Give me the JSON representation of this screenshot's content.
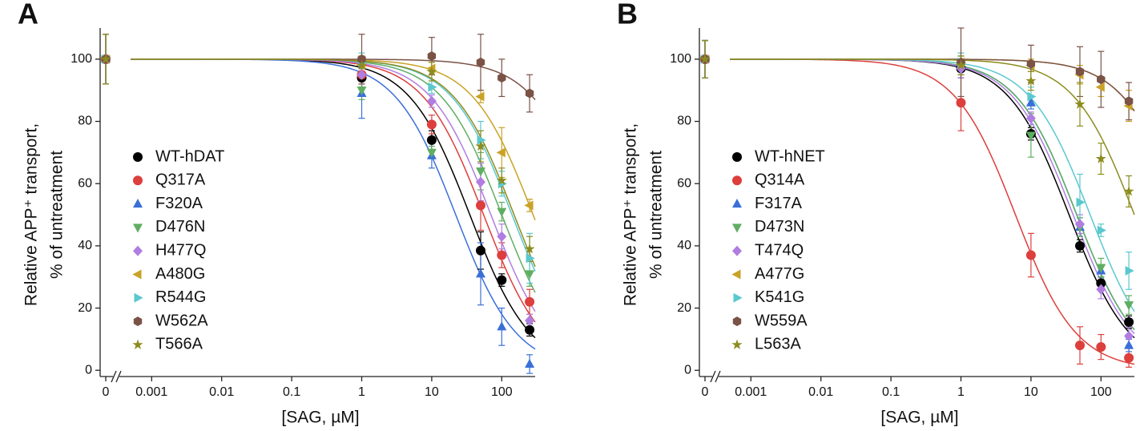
{
  "chart_data": [
    {
      "type": "scatter",
      "panel": "A",
      "xlabel": "[SAG, µM]",
      "ylabel": [
        "Relative APP⁺ transport,",
        "% of untreatment"
      ],
      "xscale": "log",
      "x_break": true,
      "xlim": [
        0.0005,
        300
      ],
      "ylim": [
        -2,
        110
      ],
      "xticks": [
        0,
        0.001,
        0.01,
        0.1,
        1,
        10,
        100
      ],
      "yticks": [
        0,
        20,
        40,
        60,
        80,
        100
      ],
      "x": [
        0,
        1,
        10,
        50,
        100,
        250
      ],
      "series": [
        {
          "name": "WT-hDAT",
          "color": "#000000",
          "marker": "circle",
          "values": [
            100,
            94,
            74,
            38.5,
            29,
            13
          ],
          "errors": [
            8,
            3,
            3,
            6,
            2,
            2
          ],
          "fit": {
            "ic50": 35,
            "hill": 1
          }
        },
        {
          "name": "Q317A",
          "color": "#dc3f3c",
          "marker": "circle",
          "values": [
            100,
            95,
            79,
            53,
            37,
            22
          ],
          "errors": [
            8,
            3,
            3,
            8,
            4,
            4
          ],
          "fit": {
            "ic50": 55,
            "hill": 1
          }
        },
        {
          "name": "F320A",
          "color": "#3a6fd8",
          "marker": "triangle-up",
          "values": [
            100,
            89,
            69,
            31,
            14,
            2
          ],
          "errors": [
            8,
            8,
            4,
            10,
            6,
            3
          ],
          "fit": {
            "ic50": 22,
            "hill": 1
          }
        },
        {
          "name": "D476N",
          "color": "#5fae62",
          "marker": "triangle-down",
          "values": [
            100,
            90,
            70,
            64,
            51,
            31
          ],
          "errors": [
            8,
            3,
            2,
            6,
            3,
            4
          ],
          "fit": {
            "ic50": 100,
            "hill": 1
          }
        },
        {
          "name": "H477Q",
          "color": "#b07ee0",
          "marker": "diamond",
          "values": [
            100,
            95,
            86.5,
            60.5,
            43,
            16
          ],
          "errors": [
            8,
            3,
            2,
            6,
            4,
            2
          ],
          "fit": {
            "ic50": 70,
            "hill": 1
          }
        },
        {
          "name": "A480G",
          "color": "#c9a227",
          "marker": "triangle-left",
          "values": [
            100,
            98,
            97,
            88,
            70,
            53
          ],
          "errors": [
            8,
            3,
            2,
            2,
            8,
            2
          ],
          "fit": {
            "ic50": 280,
            "hill": 1
          }
        },
        {
          "name": "R544G",
          "color": "#5bc8cf",
          "marker": "triangle-right",
          "values": [
            100,
            99,
            91,
            74,
            60,
            36
          ],
          "errors": [
            8,
            3,
            2,
            6,
            4,
            8
          ],
          "fit": {
            "ic50": 140,
            "hill": 1
          }
        },
        {
          "name": "W562A",
          "color": "#7a5246",
          "marker": "hexagon",
          "values": [
            100,
            100,
            101,
            99,
            94,
            89
          ],
          "errors": [
            8,
            8,
            6,
            9,
            6,
            6
          ],
          "fit": {
            "ic50": 2000,
            "hill": 1
          }
        },
        {
          "name": "T566A",
          "color": "#8c8c1f",
          "marker": "star",
          "values": [
            100,
            98,
            96,
            72,
            61,
            39
          ],
          "errors": [
            8,
            3,
            3,
            5,
            4,
            4
          ],
          "fit": {
            "ic50": 150,
            "hill": 1
          }
        }
      ]
    },
    {
      "type": "scatter",
      "panel": "B",
      "xlabel": "[SAG, µM]",
      "ylabel": [
        "Relative APP⁺ transport,",
        "% of untreatment"
      ],
      "xscale": "log",
      "x_break": true,
      "xlim": [
        0.0005,
        300
      ],
      "ylim": [
        -2,
        110
      ],
      "xticks": [
        0,
        0.001,
        0.01,
        0.1,
        1,
        10,
        100
      ],
      "yticks": [
        0,
        20,
        40,
        60,
        80,
        100
      ],
      "x": [
        0,
        1,
        10,
        50,
        100,
        250
      ],
      "series": [
        {
          "name": "WT-hNET",
          "color": "#000000",
          "marker": "circle",
          "values": [
            100,
            97,
            76,
            40,
            28,
            15.5
          ],
          "errors": [
            6,
            3,
            2,
            2,
            2,
            2
          ],
          "fit": {
            "ic50": 35,
            "hill": 1
          }
        },
        {
          "name": "Q314A",
          "color": "#dc3f3c",
          "marker": "circle",
          "values": [
            100,
            86,
            37,
            8,
            7.5,
            4
          ],
          "errors": [
            6,
            9,
            7,
            6,
            4,
            3
          ],
          "fit": {
            "ic50": 6,
            "hill": 1
          }
        },
        {
          "name": "F317A",
          "color": "#3a6fd8",
          "marker": "triangle-up",
          "values": [
            100,
            98,
            86,
            46,
            32,
            8
          ],
          "errors": [
            6,
            3,
            2,
            3,
            2,
            2
          ],
          "fit": {
            "ic50": 45,
            "hill": 1
          }
        },
        {
          "name": "D473N",
          "color": "#5fae62",
          "marker": "triangle-down",
          "values": [
            100,
            98,
            75.5,
            46,
            33,
            21
          ],
          "errors": [
            6,
            3,
            7,
            3,
            3,
            3
          ],
          "fit": {
            "ic50": 45,
            "hill": 1
          }
        },
        {
          "name": "T474Q",
          "color": "#b07ee0",
          "marker": "diamond",
          "values": [
            100,
            97,
            81,
            47,
            26,
            11
          ],
          "errors": [
            6,
            3,
            2,
            3,
            3,
            3
          ],
          "fit": {
            "ic50": 40,
            "hill": 1
          }
        },
        {
          "name": "A477G",
          "color": "#c9a227",
          "marker": "triangle-left",
          "values": [
            100,
            99,
            98,
            95,
            91,
            85
          ],
          "errors": [
            6,
            3,
            2,
            3,
            3,
            5
          ],
          "fit": {
            "ic50": 1500,
            "hill": 1
          }
        },
        {
          "name": "K541G",
          "color": "#5bc8cf",
          "marker": "triangle-right",
          "values": [
            100,
            99,
            88,
            54,
            45,
            32
          ],
          "errors": [
            6,
            3,
            3,
            9,
            2,
            6
          ],
          "fit": {
            "ic50": 70,
            "hill": 1
          }
        },
        {
          "name": "W559A",
          "color": "#7a5246",
          "marker": "hexagon",
          "values": [
            100,
            99,
            98.5,
            96,
            93.5,
            86.5
          ],
          "errors": [
            6,
            11,
            6,
            8,
            9,
            6
          ],
          "fit": {
            "ic50": 1500,
            "hill": 1
          }
        },
        {
          "name": "L563A",
          "color": "#8c8c1f",
          "marker": "star",
          "values": [
            100,
            98,
            93,
            85.5,
            68,
            57.5
          ],
          "errors": [
            6,
            3,
            3,
            7,
            5,
            5
          ],
          "fit": {
            "ic50": 300,
            "hill": 1
          }
        }
      ]
    }
  ]
}
